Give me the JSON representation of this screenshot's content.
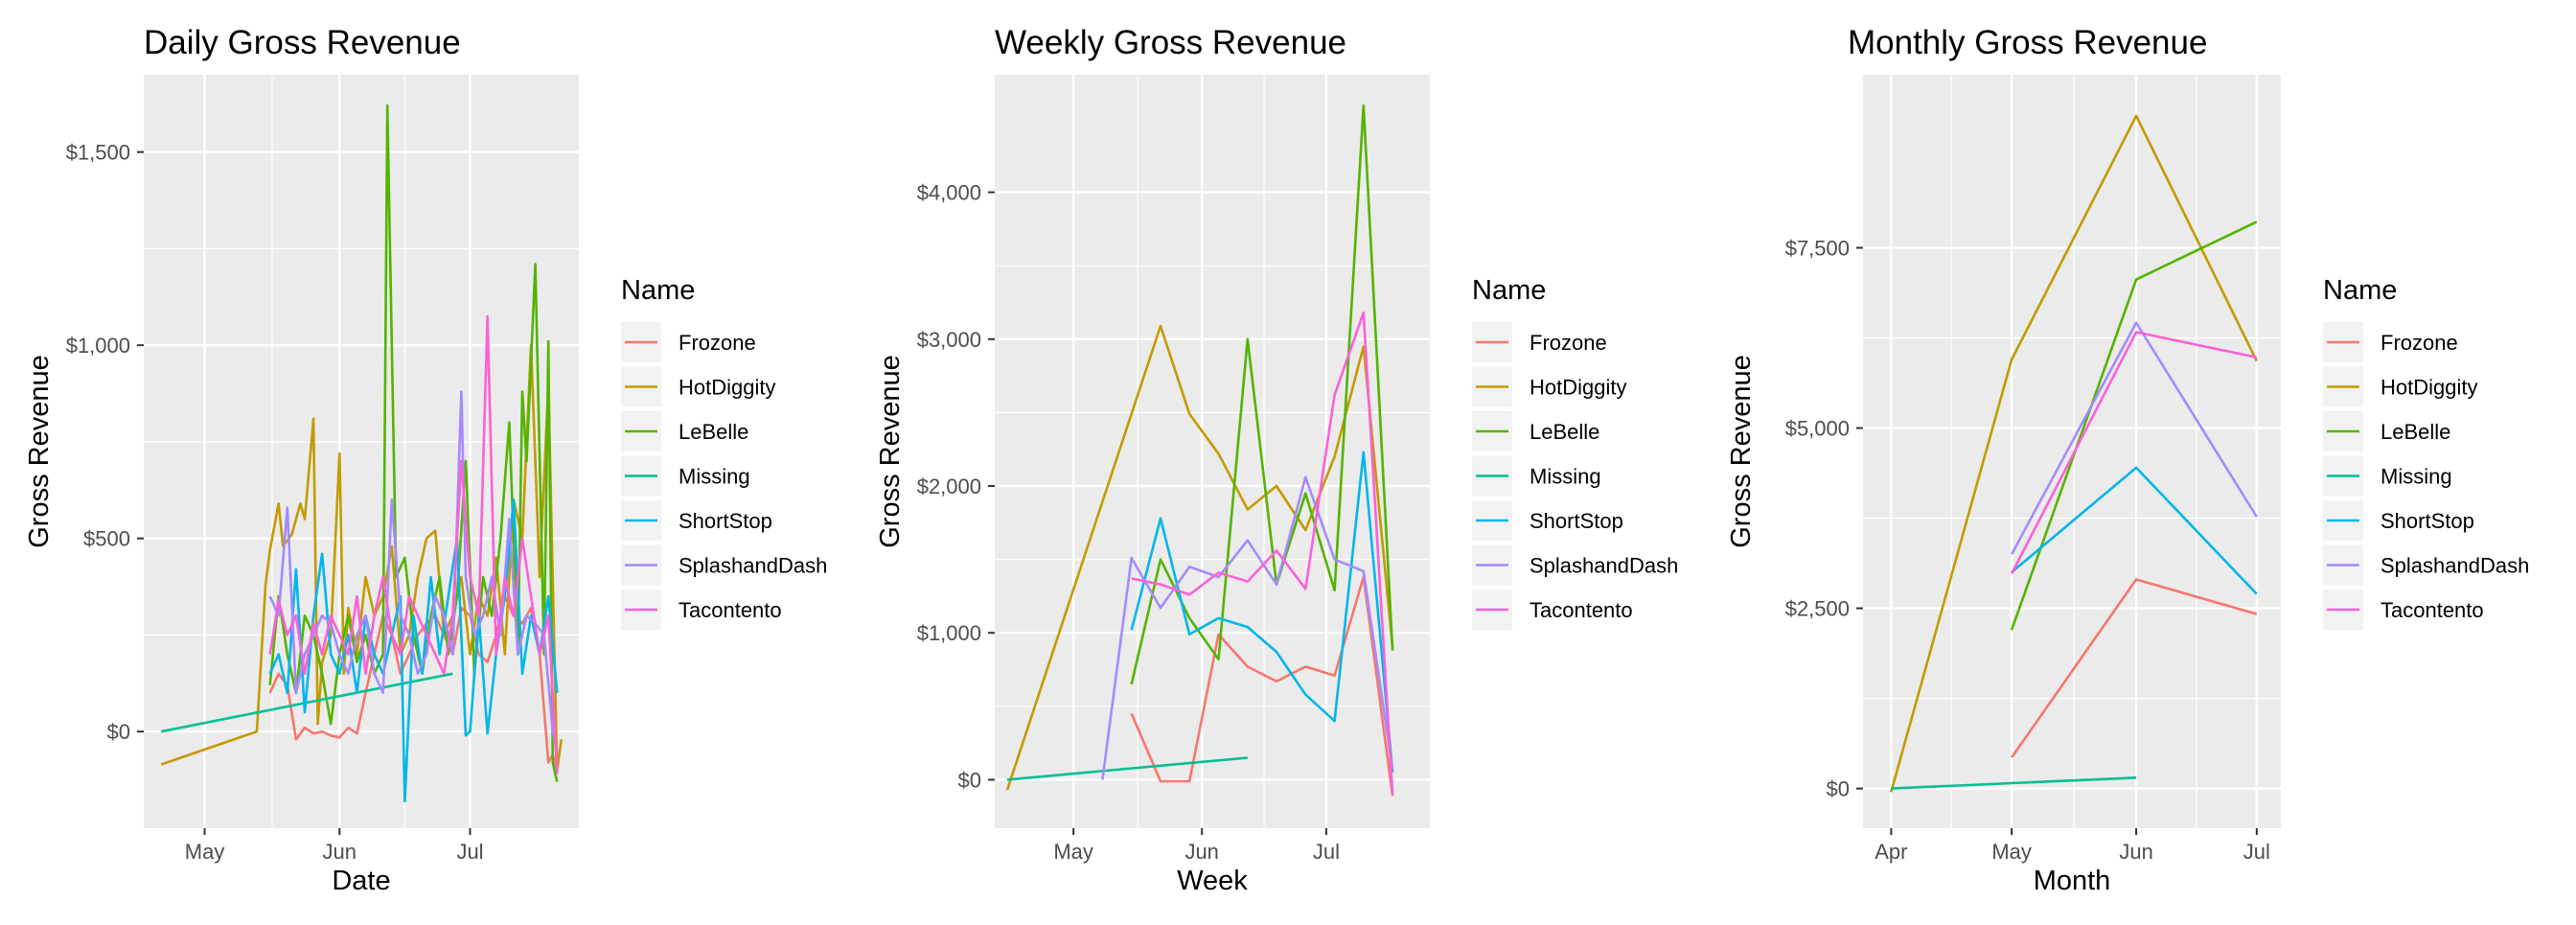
{
  "legend": {
    "title": "Name",
    "entries": [
      {
        "name": "Frozone",
        "color": "#F8766D"
      },
      {
        "name": "HotDiggity",
        "color": "#C49A00"
      },
      {
        "name": "LeBelle",
        "color": "#53B400"
      },
      {
        "name": "Missing",
        "color": "#00C094"
      },
      {
        "name": "ShortStop",
        "color": "#00B6EB"
      },
      {
        "name": "SplashandDash",
        "color": "#A58AFF"
      },
      {
        "name": "Tacontento",
        "color": "#FB61D7"
      }
    ]
  },
  "chart_data": [
    {
      "type": "line",
      "title": "Daily Gross Revenue",
      "xlabel": "Date",
      "ylabel": "Gross Revenue",
      "x_ticks": [
        "May",
        "Jun",
        "Jul"
      ],
      "y_ticks": [
        "$0",
        "$500",
        "$1,000",
        "$1,500"
      ],
      "y_tick_values": [
        0,
        500,
        1000,
        1500
      ],
      "xlim": [
        "2024-04-17",
        "2024-07-26"
      ],
      "ylim": [
        -250,
        1700
      ],
      "x_tick_dates": [
        "2024-05-01",
        "2024-06-01",
        "2024-07-01"
      ],
      "series": [
        {
          "name": "Frozone",
          "x": [
            "2024-05-16",
            "2024-05-18",
            "2024-05-20",
            "2024-05-22",
            "2024-05-24",
            "2024-05-26",
            "2024-05-28",
            "2024-05-30",
            "2024-06-01",
            "2024-06-03",
            "2024-06-05",
            "2024-06-07",
            "2024-06-09",
            "2024-06-11",
            "2024-06-13",
            "2024-06-15",
            "2024-06-17",
            "2024-06-19",
            "2024-06-21",
            "2024-06-23",
            "2024-06-25",
            "2024-06-27",
            "2024-06-29",
            "2024-07-01",
            "2024-07-03",
            "2024-07-05",
            "2024-07-07",
            "2024-07-09",
            "2024-07-11",
            "2024-07-13",
            "2024-07-15",
            "2024-07-17",
            "2024-07-19",
            "2024-07-20",
            "2024-07-21"
          ],
          "y": [
            100,
            150,
            120,
            -20,
            10,
            -5,
            0,
            -10,
            -15,
            10,
            -5,
            100,
            200,
            300,
            250,
            150,
            200,
            250,
            280,
            300,
            250,
            200,
            320,
            300,
            200,
            180,
            250,
            350,
            300,
            280,
            320,
            200,
            -80,
            -60,
            -100
          ]
        },
        {
          "name": "HotDiggity",
          "x": [
            "2024-04-21",
            "2024-05-13",
            "2024-05-15",
            "2024-05-16",
            "2024-05-18",
            "2024-05-19",
            "2024-05-21",
            "2024-05-23",
            "2024-05-24",
            "2024-05-26",
            "2024-05-27",
            "2024-05-28",
            "2024-05-30",
            "2024-06-01",
            "2024-06-02",
            "2024-06-03",
            "2024-06-05",
            "2024-06-07",
            "2024-06-09",
            "2024-06-11",
            "2024-06-13",
            "2024-06-15",
            "2024-06-17",
            "2024-06-19",
            "2024-06-21",
            "2024-06-23",
            "2024-06-25",
            "2024-06-27",
            "2024-06-29",
            "2024-07-01",
            "2024-07-03",
            "2024-07-05",
            "2024-07-07",
            "2024-07-09",
            "2024-07-11",
            "2024-07-13",
            "2024-07-15",
            "2024-07-17",
            "2024-07-19",
            "2024-07-21",
            "2024-07-22"
          ],
          "y": [
            -85,
            0,
            380,
            470,
            590,
            480,
            510,
            590,
            550,
            810,
            20,
            180,
            250,
            720,
            150,
            320,
            200,
            400,
            300,
            350,
            480,
            200,
            250,
            400,
            500,
            520,
            250,
            300,
            400,
            200,
            350,
            300,
            450,
            200,
            600,
            500,
            1000,
            400,
            900,
            -100,
            -20
          ]
        },
        {
          "name": "LeBelle",
          "x": [
            "2024-05-16",
            "2024-05-18",
            "2024-05-20",
            "2024-05-22",
            "2024-05-24",
            "2024-05-26",
            "2024-05-28",
            "2024-05-30",
            "2024-06-01",
            "2024-06-03",
            "2024-06-05",
            "2024-06-07",
            "2024-06-09",
            "2024-06-11",
            "2024-06-12",
            "2024-06-14",
            "2024-06-16",
            "2024-06-18",
            "2024-06-20",
            "2024-06-22",
            "2024-06-24",
            "2024-06-26",
            "2024-06-28",
            "2024-06-30",
            "2024-07-02",
            "2024-07-04",
            "2024-07-06",
            "2024-07-08",
            "2024-07-10",
            "2024-07-12",
            "2024-07-13",
            "2024-07-14",
            "2024-07-16",
            "2024-07-18",
            "2024-07-19",
            "2024-07-20",
            "2024-07-21"
          ],
          "y": [
            120,
            350,
            200,
            100,
            300,
            250,
            150,
            20,
            200,
            300,
            180,
            250,
            150,
            200,
            1620,
            400,
            450,
            250,
            150,
            300,
            400,
            200,
            350,
            700,
            150,
            400,
            300,
            500,
            800,
            200,
            880,
            700,
            1210,
            200,
            1010,
            -80,
            -130
          ]
        },
        {
          "name": "Missing",
          "x": [
            "2024-04-21",
            "2024-06-27"
          ],
          "y": [
            0,
            150
          ]
        },
        {
          "name": "ShortStop",
          "x": [
            "2024-05-16",
            "2024-05-18",
            "2024-05-20",
            "2024-05-22",
            "2024-05-24",
            "2024-05-26",
            "2024-05-28",
            "2024-05-30",
            "2024-06-01",
            "2024-06-03",
            "2024-06-05",
            "2024-06-07",
            "2024-06-09",
            "2024-06-11",
            "2024-06-13",
            "2024-06-15",
            "2024-06-16",
            "2024-06-18",
            "2024-06-20",
            "2024-06-22",
            "2024-06-24",
            "2024-06-26",
            "2024-06-28",
            "2024-06-30",
            "2024-07-01",
            "2024-07-03",
            "2024-07-05",
            "2024-07-07",
            "2024-07-09",
            "2024-07-11",
            "2024-07-13",
            "2024-07-15",
            "2024-07-17",
            "2024-07-19",
            "2024-07-21"
          ],
          "y": [
            150,
            200,
            100,
            420,
            50,
            300,
            460,
            200,
            150,
            250,
            100,
            300,
            200,
            150,
            250,
            350,
            -180,
            300,
            150,
            400,
            200,
            350,
            500,
            -10,
            0,
            300,
            -5,
            200,
            350,
            600,
            150,
            300,
            200,
            350,
            100
          ]
        },
        {
          "name": "SplashandDash",
          "x": [
            "2024-05-16",
            "2024-05-18",
            "2024-05-20",
            "2024-05-22",
            "2024-05-24",
            "2024-05-26",
            "2024-05-28",
            "2024-05-30",
            "2024-06-01",
            "2024-06-03",
            "2024-06-05",
            "2024-06-07",
            "2024-06-09",
            "2024-06-11",
            "2024-06-13",
            "2024-06-15",
            "2024-06-17",
            "2024-06-19",
            "2024-06-21",
            "2024-06-23",
            "2024-06-25",
            "2024-06-27",
            "2024-06-29",
            "2024-06-30",
            "2024-07-02",
            "2024-07-04",
            "2024-07-06",
            "2024-07-08",
            "2024-07-10",
            "2024-07-12",
            "2024-07-14",
            "2024-07-16",
            "2024-07-18",
            "2024-07-20",
            "2024-07-21"
          ],
          "y": [
            350,
            300,
            580,
            100,
            200,
            250,
            300,
            280,
            200,
            150,
            250,
            300,
            150,
            100,
            600,
            300,
            250,
            150,
            200,
            350,
            300,
            200,
            880,
            400,
            250,
            300,
            400,
            250,
            550,
            200,
            300,
            280,
            250,
            0,
            -50
          ]
        },
        {
          "name": "Tacontento",
          "x": [
            "2024-05-16",
            "2024-05-18",
            "2024-05-20",
            "2024-05-22",
            "2024-05-24",
            "2024-05-26",
            "2024-05-28",
            "2024-05-30",
            "2024-06-01",
            "2024-06-03",
            "2024-06-05",
            "2024-06-07",
            "2024-06-09",
            "2024-06-11",
            "2024-06-13",
            "2024-06-15",
            "2024-06-17",
            "2024-06-19",
            "2024-06-21",
            "2024-06-23",
            "2024-06-25",
            "2024-06-27",
            "2024-06-29",
            "2024-07-01",
            "2024-07-03",
            "2024-07-05",
            "2024-07-07",
            "2024-07-09",
            "2024-07-11",
            "2024-07-13",
            "2024-07-15",
            "2024-07-17",
            "2024-07-19",
            "2024-07-21"
          ],
          "y": [
            200,
            340,
            250,
            300,
            150,
            280,
            200,
            300,
            250,
            200,
            350,
            150,
            300,
            400,
            250,
            200,
            350,
            300,
            250,
            200,
            150,
            300,
            700,
            400,
            300,
            1075,
            200,
            400,
            300,
            500,
            350,
            200,
            300,
            -110
          ]
        }
      ]
    },
    {
      "type": "line",
      "title": "Weekly Gross Revenue",
      "xlabel": "Week",
      "ylabel": "Gross Revenue",
      "x_ticks": [
        "May",
        "Jun",
        "Jul"
      ],
      "y_ticks": [
        "$0",
        "$1,000",
        "$2,000",
        "$3,000",
        "$4,000"
      ],
      "y_tick_values": [
        0,
        1000,
        2000,
        3000,
        4000
      ],
      "xlim": [
        "2024-04-12",
        "2024-07-26"
      ],
      "ylim": [
        -330,
        4800
      ],
      "x_tick_dates": [
        "2024-05-01",
        "2024-06-01",
        "2024-07-01"
      ],
      "series": [
        {
          "name": "Frozone",
          "x": [
            "2024-05-15",
            "2024-05-22",
            "2024-05-29",
            "2024-06-05",
            "2024-06-12",
            "2024-06-19",
            "2024-06-26",
            "2024-07-03",
            "2024-07-10",
            "2024-07-17"
          ],
          "y": [
            450,
            -10,
            -10,
            990,
            770,
            670,
            770,
            710,
            1380,
            -110
          ]
        },
        {
          "name": "HotDiggity",
          "x": [
            "2024-04-15",
            "2024-05-22",
            "2024-05-29",
            "2024-06-05",
            "2024-06-12",
            "2024-06-19",
            "2024-06-26",
            "2024-07-03",
            "2024-07-10",
            "2024-07-17"
          ],
          "y": [
            -70,
            3090,
            2490,
            2220,
            1840,
            2000,
            1700,
            2200,
            2950,
            900
          ]
        },
        {
          "name": "LeBelle",
          "x": [
            "2024-05-15",
            "2024-05-22",
            "2024-05-29",
            "2024-06-05",
            "2024-06-12",
            "2024-06-19",
            "2024-06-26",
            "2024-07-03",
            "2024-07-10",
            "2024-07-17"
          ],
          "y": [
            650,
            1500,
            1100,
            820,
            3000,
            1330,
            1950,
            1290,
            4590,
            880
          ]
        },
        {
          "name": "Missing",
          "x": [
            "2024-04-15",
            "2024-06-12"
          ],
          "y": [
            0,
            150
          ]
        },
        {
          "name": "ShortStop",
          "x": [
            "2024-05-15",
            "2024-05-22",
            "2024-05-29",
            "2024-06-05",
            "2024-06-12",
            "2024-06-19",
            "2024-06-26",
            "2024-07-03",
            "2024-07-10",
            "2024-07-17"
          ],
          "y": [
            1020,
            1780,
            990,
            1100,
            1040,
            870,
            580,
            400,
            2230,
            50
          ]
        },
        {
          "name": "SplashandDash",
          "x": [
            "2024-05-08",
            "2024-05-15",
            "2024-05-22",
            "2024-05-29",
            "2024-06-05",
            "2024-06-12",
            "2024-06-19",
            "2024-06-26",
            "2024-07-03",
            "2024-07-10",
            "2024-07-17"
          ],
          "y": [
            0,
            1510,
            1170,
            1450,
            1380,
            1630,
            1330,
            2060,
            1500,
            1420,
            70
          ]
        },
        {
          "name": "Tacontento",
          "x": [
            "2024-05-15",
            "2024-05-22",
            "2024-05-29",
            "2024-06-05",
            "2024-06-12",
            "2024-06-19",
            "2024-06-26",
            "2024-07-03",
            "2024-07-10",
            "2024-07-17"
          ],
          "y": [
            1370,
            1330,
            1260,
            1410,
            1350,
            1560,
            1300,
            2620,
            3180,
            -100
          ]
        }
      ]
    },
    {
      "type": "line",
      "title": "Monthly Gross Revenue",
      "xlabel": "Month",
      "ylabel": "Gross Revenue",
      "x_ticks": [
        "Apr",
        "May",
        "Jun",
        "Jul"
      ],
      "y_ticks": [
        "$0",
        "$2,500",
        "$5,000",
        "$7,500"
      ],
      "y_tick_values": [
        0,
        2500,
        5000,
        7500
      ],
      "xlim": [
        "2024-03-25",
        "2024-07-07"
      ],
      "ylim": [
        -550,
        9900
      ],
      "x_tick_dates": [
        "2024-04-01",
        "2024-05-01",
        "2024-06-01",
        "2024-07-01"
      ],
      "series": [
        {
          "name": "Frozone",
          "x": [
            "2024-05-01",
            "2024-06-01",
            "2024-07-01"
          ],
          "y": [
            430,
            2900,
            2420
          ]
        },
        {
          "name": "HotDiggity",
          "x": [
            "2024-04-01",
            "2024-05-01",
            "2024-06-01",
            "2024-07-01"
          ],
          "y": [
            -50,
            5950,
            9330,
            5930
          ]
        },
        {
          "name": "LeBelle",
          "x": [
            "2024-05-01",
            "2024-06-01",
            "2024-07-01"
          ],
          "y": [
            2200,
            7060,
            7860
          ]
        },
        {
          "name": "Missing",
          "x": [
            "2024-04-01",
            "2024-06-01"
          ],
          "y": [
            0,
            150
          ]
        },
        {
          "name": "ShortStop",
          "x": [
            "2024-05-01",
            "2024-06-01",
            "2024-07-01"
          ],
          "y": [
            3000,
            4450,
            2700
          ]
        },
        {
          "name": "SplashandDash",
          "x": [
            "2024-05-01",
            "2024-06-01",
            "2024-07-01"
          ],
          "y": [
            3250,
            6460,
            3770
          ]
        },
        {
          "name": "Tacontento",
          "x": [
            "2024-05-01",
            "2024-06-01",
            "2024-07-01"
          ],
          "y": [
            2980,
            6330,
            5980
          ]
        }
      ]
    }
  ]
}
